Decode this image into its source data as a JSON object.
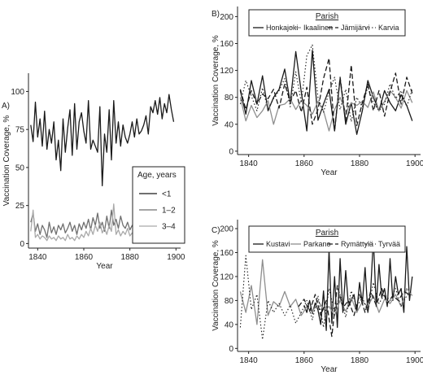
{
  "chart_data": [
    {
      "panel": "A)",
      "type": "line",
      "xlabel": "Year",
      "ylabel": "Vaccination Coverage, %",
      "xlim": [
        1836,
        1902
      ],
      "ylim": [
        -3,
        112
      ],
      "xticks": [
        1840,
        1860,
        1880,
        1900
      ],
      "yticks": [
        0,
        25,
        50,
        75,
        100
      ],
      "legend": {
        "title": "Age, years",
        "position": "center-right"
      },
      "series": [
        {
          "name": "<1",
          "color": "#1a1a1a",
          "width": 1.3,
          "dash": "",
          "x": [
            1837,
            1838,
            1839,
            1840,
            1841,
            1842,
            1843,
            1844,
            1845,
            1846,
            1847,
            1848,
            1849,
            1850,
            1851,
            1852,
            1853,
            1854,
            1855,
            1856,
            1857,
            1858,
            1859,
            1860,
            1861,
            1862,
            1863,
            1864,
            1865,
            1866,
            1867,
            1868,
            1869,
            1870,
            1871,
            1872,
            1873,
            1874,
            1875,
            1876,
            1877,
            1878,
            1879,
            1880,
            1881,
            1882,
            1883,
            1884,
            1885,
            1886,
            1887,
            1888,
            1889,
            1890,
            1891,
            1892,
            1893,
            1894,
            1895,
            1896,
            1897,
            1898,
            1899
          ],
          "values": [
            78,
            67,
            93,
            70,
            82,
            64,
            87,
            62,
            75,
            66,
            80,
            55,
            68,
            48,
            82,
            60,
            76,
            88,
            58,
            92,
            62,
            80,
            86,
            74,
            66,
            94,
            62,
            68,
            64,
            60,
            90,
            38,
            72,
            60,
            88,
            55,
            94,
            66,
            80,
            64,
            78,
            70,
            66,
            72,
            80,
            70,
            82,
            72,
            74,
            78,
            84,
            72,
            90,
            86,
            94,
            85,
            96,
            82,
            92,
            86,
            98,
            88,
            80
          ]
        },
        {
          "name": "1–2",
          "color": "#6f6f6f",
          "width": 1.3,
          "dash": "",
          "x": [
            1837,
            1838,
            1839,
            1840,
            1841,
            1842,
            1843,
            1844,
            1845,
            1846,
            1847,
            1848,
            1849,
            1850,
            1851,
            1852,
            1853,
            1854,
            1855,
            1856,
            1857,
            1858,
            1859,
            1860,
            1861,
            1862,
            1863,
            1864,
            1865,
            1866,
            1867,
            1868,
            1869,
            1870,
            1871,
            1872,
            1873,
            1874,
            1875,
            1876,
            1877,
            1878,
            1879,
            1880,
            1881,
            1882,
            1883,
            1884,
            1885,
            1886,
            1887,
            1888,
            1889,
            1890,
            1891,
            1892,
            1893,
            1894,
            1895,
            1896,
            1897,
            1898,
            1899
          ],
          "values": [
            14,
            20,
            8,
            13,
            6,
            12,
            9,
            4,
            14,
            7,
            11,
            6,
            12,
            9,
            13,
            7,
            10,
            14,
            8,
            12,
            6,
            13,
            9,
            14,
            10,
            16,
            9,
            17,
            12,
            20,
            10,
            14,
            8,
            18,
            10,
            22,
            12,
            16,
            10,
            18,
            12,
            10,
            14,
            9,
            12,
            8,
            14,
            10,
            12,
            9,
            13,
            10,
            14,
            9,
            12,
            8,
            11,
            9,
            12,
            7,
            10,
            9,
            8
          ]
        },
        {
          "name": "3–4",
          "color": "#a9a9a9",
          "width": 1.3,
          "dash": "",
          "x": [
            1837,
            1838,
            1839,
            1840,
            1841,
            1842,
            1843,
            1844,
            1845,
            1846,
            1847,
            1848,
            1849,
            1850,
            1851,
            1852,
            1853,
            1854,
            1855,
            1856,
            1857,
            1858,
            1859,
            1860,
            1861,
            1862,
            1863,
            1864,
            1865,
            1866,
            1867,
            1868,
            1869,
            1870,
            1871,
            1872,
            1873,
            1874,
            1875,
            1876,
            1877,
            1878,
            1879,
            1880,
            1881,
            1882,
            1883,
            1884,
            1885,
            1886,
            1887,
            1888,
            1889,
            1890,
            1891,
            1892,
            1893,
            1894,
            1895,
            1896,
            1897,
            1898,
            1899
          ],
          "values": [
            8,
            22,
            4,
            6,
            3,
            5,
            4,
            2,
            5,
            3,
            4,
            2,
            5,
            3,
            4,
            2,
            6,
            3,
            4,
            2,
            5,
            3,
            6,
            4,
            8,
            5,
            10,
            6,
            12,
            8,
            14,
            7,
            10,
            6,
            12,
            8,
            26,
            6,
            9,
            5,
            8,
            6,
            10,
            5,
            7,
            4,
            6,
            3,
            5,
            2,
            4,
            3,
            6,
            2,
            4,
            3,
            5,
            2,
            4,
            2,
            3,
            2,
            2
          ]
        }
      ]
    },
    {
      "panel": "B)",
      "type": "line",
      "xlabel": "Year",
      "ylabel": "Vaccination Coverage, %",
      "xlim": [
        1836,
        1902
      ],
      "ylim": [
        -5,
        215
      ],
      "xticks": [
        1840,
        1860,
        1880,
        1900
      ],
      "yticks": [
        0,
        40,
        80,
        120,
        160,
        200
      ],
      "legend": {
        "title": "Parish",
        "position": "top"
      },
      "series": [
        {
          "name": "Honkajoki",
          "color": "#1a1a1a",
          "width": 1.3,
          "dash": "",
          "x": [
            1837,
            1839,
            1841,
            1843,
            1845,
            1847,
            1849,
            1851,
            1853,
            1855,
            1857,
            1859,
            1861,
            1863,
            1865,
            1867,
            1869,
            1871,
            1873,
            1875,
            1877,
            1879,
            1881,
            1883,
            1885,
            1887,
            1889,
            1891,
            1893,
            1895,
            1897,
            1899
          ],
          "values": [
            90,
            55,
            105,
            70,
            112,
            60,
            80,
            92,
            122,
            72,
            148,
            88,
            30,
            150,
            46,
            70,
            92,
            30,
            108,
            40,
            72,
            25,
            60,
            105,
            80,
            60,
            90,
            72,
            60,
            84,
            68,
            45
          ]
        },
        {
          "name": "Ikaalinen",
          "color": "#8e8e8e",
          "width": 1.3,
          "dash": "",
          "x": [
            1837,
            1839,
            1841,
            1843,
            1845,
            1847,
            1849,
            1851,
            1853,
            1855,
            1857,
            1859,
            1861,
            1863,
            1865,
            1867,
            1869,
            1871,
            1873,
            1875,
            1877,
            1879,
            1881,
            1883,
            1885,
            1887,
            1889,
            1891,
            1893,
            1895,
            1897,
            1899
          ],
          "values": [
            80,
            45,
            68,
            50,
            60,
            75,
            40,
            68,
            70,
            78,
            62,
            75,
            68,
            55,
            74,
            60,
            30,
            62,
            80,
            58,
            72,
            68,
            74,
            65,
            88,
            60,
            74,
            90,
            80,
            64,
            90,
            72
          ]
        },
        {
          "name": "Jämijärvi",
          "color": "#1a1a1a",
          "width": 1.3,
          "dash": "6,3",
          "x": [
            1837,
            1839,
            1841,
            1843,
            1845,
            1847,
            1849,
            1851,
            1853,
            1855,
            1857,
            1859,
            1861,
            1863,
            1865,
            1867,
            1869,
            1871,
            1873,
            1875,
            1877,
            1879,
            1881,
            1883,
            1885,
            1887,
            1889,
            1891,
            1893,
            1895,
            1897,
            1899
          ],
          "values": [
            92,
            62,
            90,
            70,
            85,
            78,
            92,
            64,
            100,
            74,
            90,
            58,
            95,
            40,
            62,
            108,
            138,
            30,
            110,
            45,
            128,
            38,
            72,
            100,
            60,
            90,
            52,
            88,
            116,
            70,
            110,
            86
          ]
        },
        {
          "name": "Karvia",
          "color": "#1a1a1a",
          "width": 1.1,
          "dash": "1.5,2.5",
          "x": [
            1837,
            1839,
            1841,
            1843,
            1845,
            1847,
            1849,
            1851,
            1853,
            1855,
            1857,
            1859,
            1861,
            1863,
            1865,
            1867,
            1869,
            1871,
            1873,
            1875,
            1877,
            1879,
            1881,
            1883,
            1885,
            1887,
            1889,
            1891,
            1893,
            1895,
            1897,
            1899
          ],
          "values": [
            70,
            105,
            82,
            60,
            94,
            62,
            78,
            90,
            108,
            66,
            118,
            72,
            142,
            158,
            80,
            58,
            88,
            110,
            62,
            92,
            44,
            80,
            66,
            96,
            72,
            60,
            70,
            100,
            78,
            90,
            66,
            92
          ]
        }
      ]
    },
    {
      "panel": "C)",
      "type": "line",
      "xlabel": "Year",
      "ylabel": "Vaccination Coverage, %",
      "xlim": [
        1836,
        1902
      ],
      "ylim": [
        -5,
        215
      ],
      "xticks": [
        1840,
        1860,
        1880,
        1900
      ],
      "yticks": [
        0,
        40,
        80,
        120,
        160,
        200
      ],
      "legend": {
        "title": "Parish",
        "position": "top"
      },
      "series": [
        {
          "name": "Kustavi",
          "color": "#1a1a1a",
          "width": 1.3,
          "dash": "",
          "x": [
            1860,
            1861,
            1862,
            1863,
            1864,
            1865,
            1866,
            1867,
            1868,
            1869,
            1870,
            1871,
            1872,
            1873,
            1874,
            1875,
            1876,
            1877,
            1878,
            1879,
            1880,
            1881,
            1882,
            1883,
            1884,
            1885,
            1886,
            1887,
            1888,
            1889,
            1890,
            1891,
            1892,
            1893,
            1894,
            1895,
            1896,
            1897,
            1898,
            1899
          ],
          "values": [
            72,
            60,
            80,
            58,
            76,
            64,
            40,
            96,
            30,
            165,
            42,
            120,
            35,
            150,
            60,
            130,
            70,
            80,
            90,
            60,
            110,
            75,
            135,
            60,
            95,
            183,
            70,
            140,
            85,
            100,
            70,
            150,
            80,
            120,
            90,
            100,
            60,
            170,
            80,
            120
          ]
        },
        {
          "name": "Parkano",
          "color": "#8e8e8e",
          "width": 1.3,
          "dash": "",
          "x": [
            1837,
            1839,
            1841,
            1843,
            1845,
            1847,
            1849,
            1851,
            1853,
            1855,
            1857,
            1859,
            1861,
            1863,
            1865,
            1867,
            1869,
            1871,
            1873,
            1875,
            1877,
            1879,
            1881,
            1883,
            1885,
            1887,
            1889,
            1891,
            1893,
            1895,
            1897,
            1899
          ],
          "values": [
            95,
            60,
            105,
            40,
            148,
            55,
            78,
            70,
            95,
            70,
            82,
            55,
            70,
            60,
            80,
            65,
            70,
            55,
            80,
            62,
            85,
            60,
            78,
            70,
            88,
            60,
            82,
            75,
            90,
            70,
            100,
            88
          ]
        },
        {
          "name": "Rymättylä",
          "color": "#1a1a1a",
          "width": 1.3,
          "dash": "6,3",
          "x": [
            1858,
            1860,
            1862,
            1864,
            1866,
            1868,
            1870,
            1872,
            1874,
            1876,
            1878,
            1880,
            1882,
            1884,
            1886,
            1888,
            1890,
            1892,
            1894,
            1896,
            1898
          ],
          "values": [
            70,
            82,
            62,
            90,
            55,
            80,
            20,
            105,
            68,
            80,
            55,
            90,
            60,
            95,
            72,
            100,
            75,
            88,
            80,
            95,
            90
          ]
        },
        {
          "name": "Tyrvää",
          "color": "#1a1a1a",
          "width": 1.1,
          "dash": "1.5,2.5",
          "x": [
            1837,
            1839,
            1841,
            1843,
            1845,
            1847,
            1849,
            1851,
            1853,
            1855,
            1857,
            1859,
            1861,
            1863,
            1865,
            1867,
            1869,
            1871,
            1873,
            1875,
            1877,
            1879,
            1881,
            1883,
            1885,
            1887,
            1889,
            1891,
            1893,
            1895,
            1897,
            1899
          ],
          "values": [
            35,
            155,
            65,
            90,
            15,
            80,
            60,
            75,
            55,
            72,
            42,
            60,
            80,
            48,
            88,
            35,
            100,
            60,
            90,
            52,
            96,
            70,
            85,
            62,
            110,
            75,
            90,
            80,
            100,
            70,
            88,
            96
          ]
        }
      ]
    }
  ]
}
